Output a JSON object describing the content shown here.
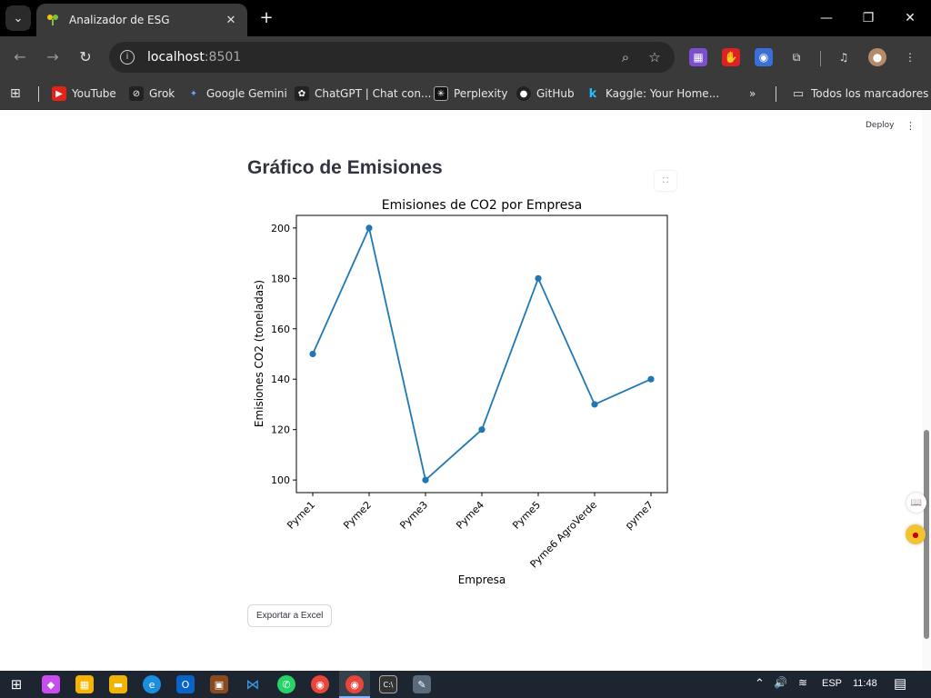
{
  "browser": {
    "tab_title": "Analizador de ESG",
    "tab_close": "✕",
    "new_tab": "+",
    "url_host": "localhost",
    "url_port": ":8501",
    "bookmarks": [
      {
        "label": "YouTube",
        "icon": "youtube-icon"
      },
      {
        "label": "Grok",
        "icon": "grok-icon"
      },
      {
        "label": "Google Gemini",
        "icon": "gemini-icon"
      },
      {
        "label": "ChatGPT | Chat con...",
        "icon": "chatgpt-icon"
      },
      {
        "label": "Perplexity",
        "icon": "perplexity-icon"
      },
      {
        "label": "GitHub",
        "icon": "github-icon"
      },
      {
        "label": "Kaggle: Your Home...",
        "icon": "kaggle-icon"
      }
    ],
    "bookmarks_overflow": "»",
    "all_bookmarks": "Todos los marcadores"
  },
  "app": {
    "deploy_label": "Deploy",
    "menu_label": "⋮",
    "heading": "Gráfico de Emisiones",
    "export_label": "Exportar a Excel"
  },
  "chart_data": {
    "type": "line",
    "title": "Emisiones de CO2 por Empresa",
    "xlabel": "Empresa",
    "ylabel": "Emisiones CO2 (toneladas)",
    "categories": [
      "Pyme1",
      "Pyme2",
      "Pyme3",
      "Pyme4",
      "Pyme5",
      "Pyme6 AgroVerde",
      "pyme7"
    ],
    "values": [
      150,
      200,
      100,
      120,
      180,
      130,
      140
    ],
    "yticks": [
      100,
      120,
      140,
      160,
      180,
      200
    ],
    "ylim": [
      95,
      205
    ],
    "markers": true,
    "grid": false,
    "color": "#1f77b4"
  },
  "taskbar": {
    "language": "ESP",
    "time": "11:48"
  }
}
